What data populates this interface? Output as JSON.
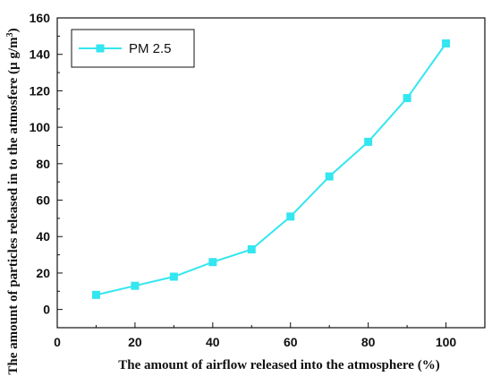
{
  "chart_data": {
    "type": "line",
    "title": "",
    "xlabel": "The amount of airflow released into the atmosphere (%)",
    "ylabel": "The amount of particles released in to the atmosfere (µ g/m³)",
    "ylabel_parts": {
      "main": "The amount of particles released in to the atmosfere (",
      "unit": "µ g/m",
      "sup": "3",
      "close": ")"
    },
    "xlim": [
      0,
      110
    ],
    "ylim": [
      -10,
      160
    ],
    "xticks": [
      0,
      20,
      40,
      60,
      80,
      100
    ],
    "yticks": [
      0,
      20,
      40,
      60,
      80,
      100,
      120,
      140,
      160
    ],
    "grid": false,
    "legend_position": "top-left",
    "series": [
      {
        "name": "PM 2.5",
        "color": "#33e6f0",
        "marker": "square",
        "x": [
          10,
          20,
          30,
          40,
          50,
          60,
          70,
          80,
          90,
          100
        ],
        "y": [
          8,
          13,
          18,
          26,
          33,
          51,
          73,
          92,
          116,
          146
        ]
      }
    ]
  }
}
